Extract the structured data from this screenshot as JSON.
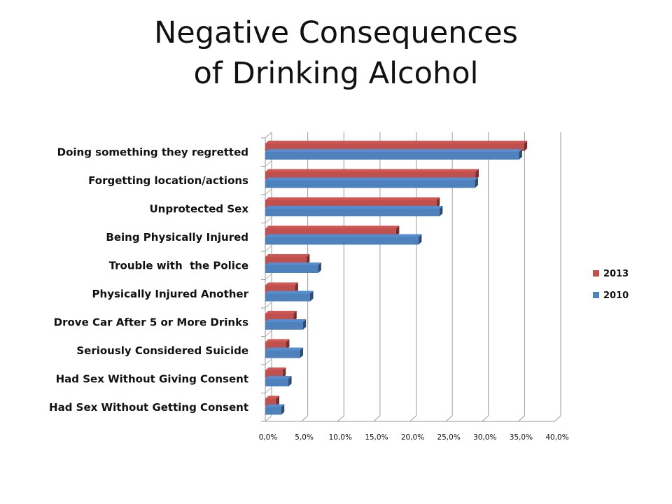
{
  "chart_data": {
    "type": "bar",
    "orientation": "horizontal",
    "title_lines": [
      "Negative Consequences",
      "of Drinking Alcohol"
    ],
    "categories": [
      "Doing something they regretted",
      "Forgetting location/actions",
      "Unprotected Sex",
      "Being Physically Injured",
      "Trouble with  the Police",
      "Physically Injured Another",
      "Drove Car After 5 or More Drinks",
      "Seriously Considered Suicide",
      "Had Sex Without Giving Consent",
      "Had Sex Without Getting Consent"
    ],
    "series": [
      {
        "name": "2013",
        "color": "#C0504D",
        "values": [
          35.8,
          29.1,
          23.7,
          18.1,
          5.7,
          4.1,
          3.9,
          2.9,
          2.4,
          1.5
        ]
      },
      {
        "name": "2010",
        "color": "#4F81BD",
        "values": [
          35.1,
          29.0,
          24.1,
          21.2,
          7.3,
          6.2,
          5.2,
          4.8,
          3.2,
          2.2
        ]
      }
    ],
    "xlim": [
      0,
      40
    ],
    "xticks": [
      {
        "value": 0,
        "label": "0,0%"
      },
      {
        "value": 5,
        "label": "5,0%"
      },
      {
        "value": 10,
        "label": "10,0%"
      },
      {
        "value": 15,
        "label": "15,0%"
      },
      {
        "value": 20,
        "label": "20,0%"
      },
      {
        "value": 25,
        "label": "25,0%"
      },
      {
        "value": 30,
        "label": "30,0%"
      },
      {
        "value": 35,
        "label": "35,0%"
      },
      {
        "value": 40,
        "label": "40,0%"
      }
    ],
    "grid": true,
    "legend_position": "right",
    "style_3d": true
  }
}
